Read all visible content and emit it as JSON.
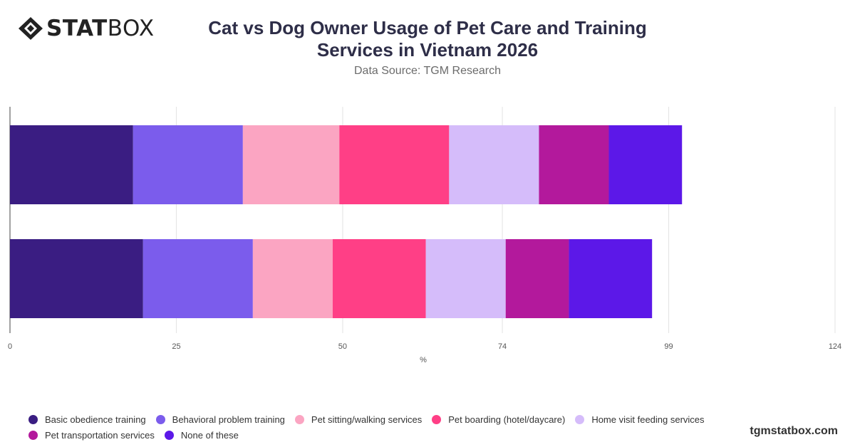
{
  "brand": {
    "logo_bold": "STAT",
    "logo_light": "BOX",
    "website": "tgmstatbox.com"
  },
  "chart_data": {
    "type": "bar",
    "orientation": "horizontal",
    "stacked": true,
    "title": "Cat vs Dog Owner Usage of Pet Care and Training Services in Vietnam 2026",
    "subtitle": "Data Source: TGM Research",
    "xlabel": "%",
    "ylabel": "",
    "xlim": [
      0,
      124
    ],
    "xticks": [
      "0",
      "25",
      "50",
      "74",
      "99",
      "124"
    ],
    "grid": true,
    "legend_position": "bottom",
    "categories": [
      "",
      ""
    ],
    "series": [
      {
        "name": "Basic obedience training",
        "color": "#3a1d82",
        "values": [
          18.5,
          20
        ]
      },
      {
        "name": "Behavioral problem training",
        "color": "#7b5cec",
        "values": [
          16.5,
          16.5
        ]
      },
      {
        "name": "Pet sitting/walking services",
        "color": "#fba5c2",
        "values": [
          14.5,
          12
        ]
      },
      {
        "name": "Pet boarding (hotel/daycare)",
        "color": "#ff3f86",
        "values": [
          16.5,
          14
        ]
      },
      {
        "name": "Home visit feeding services",
        "color": "#d5bcfa",
        "values": [
          13.5,
          12
        ]
      },
      {
        "name": "Pet transportation services",
        "color": "#b3199c",
        "values": [
          10.5,
          9.5
        ]
      },
      {
        "name": "None of these",
        "color": "#5c18e8",
        "values": [
          11,
          12.5
        ]
      }
    ]
  }
}
